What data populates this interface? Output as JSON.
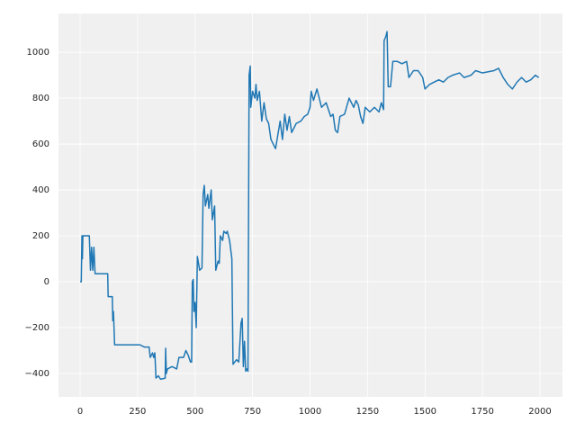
{
  "chart_data": {
    "type": "line",
    "x": [
      0,
      5,
      8,
      10,
      12,
      40,
      45,
      50,
      55,
      60,
      65,
      120,
      122,
      140,
      142,
      145,
      150,
      260,
      280,
      300,
      305,
      315,
      320,
      325,
      330,
      340,
      350,
      370,
      372,
      375,
      380,
      400,
      420,
      430,
      450,
      460,
      470,
      480,
      485,
      488,
      492,
      495,
      500,
      505,
      510,
      520,
      530,
      535,
      540,
      545,
      555,
      560,
      570,
      575,
      585,
      590,
      600,
      605,
      610,
      620,
      625,
      635,
      640,
      650,
      660,
      665,
      680,
      690,
      700,
      705,
      710,
      715,
      720,
      725,
      730,
      735,
      740,
      742,
      750,
      760,
      765,
      770,
      780,
      790,
      800,
      810,
      820,
      830,
      840,
      850,
      860,
      870,
      880,
      890,
      900,
      910,
      920,
      940,
      960,
      975,
      990,
      1000,
      1005,
      1015,
      1030,
      1050,
      1070,
      1090,
      1100,
      1110,
      1120,
      1130,
      1150,
      1170,
      1190,
      1200,
      1210,
      1220,
      1230,
      1240,
      1260,
      1280,
      1300,
      1310,
      1320,
      1322,
      1330,
      1335,
      1340,
      1350,
      1360,
      1380,
      1400,
      1420,
      1430,
      1450,
      1470,
      1490,
      1500,
      1520,
      1540,
      1560,
      1580,
      1600,
      1620,
      1650,
      1670,
      1700,
      1720,
      1750,
      1800,
      1820,
      1840,
      1860,
      1880,
      1900,
      1920,
      1940,
      1960,
      1980,
      1995
    ],
    "series": [
      {
        "color": "#1f77b4",
        "values": [
          0,
          0,
          200,
          100,
          200,
          200,
          50,
          150,
          50,
          150,
          35,
          35,
          -65,
          -65,
          -170,
          -130,
          -275,
          -275,
          -285,
          -285,
          -330,
          -310,
          -330,
          -310,
          -420,
          -410,
          -425,
          -420,
          -290,
          -400,
          -380,
          -370,
          -380,
          -330,
          -330,
          -300,
          -320,
          -350,
          -350,
          0,
          10,
          -130,
          -90,
          -200,
          110,
          50,
          60,
          380,
          420,
          330,
          380,
          320,
          400,
          270,
          330,
          50,
          90,
          80,
          200,
          180,
          220,
          210,
          220,
          180,
          100,
          -360,
          -340,
          -350,
          -180,
          -160,
          -370,
          -260,
          -390,
          -380,
          -390,
          900,
          940,
          760,
          830,
          800,
          860,
          790,
          830,
          700,
          780,
          710,
          690,
          620,
          600,
          580,
          640,
          700,
          620,
          730,
          660,
          720,
          650,
          690,
          700,
          720,
          730,
          760,
          830,
          790,
          840,
          760,
          780,
          720,
          730,
          660,
          650,
          720,
          730,
          800,
          760,
          790,
          770,
          720,
          690,
          760,
          740,
          760,
          740,
          780,
          750,
          1050,
          1070,
          1090,
          850,
          850,
          960,
          960,
          950,
          960,
          890,
          920,
          920,
          890,
          840,
          860,
          870,
          880,
          870,
          890,
          900,
          910,
          890,
          900,
          920,
          910,
          920,
          930,
          890,
          860,
          840,
          870,
          890,
          870,
          880,
          900,
          890
        ]
      }
    ],
    "xlim": [
      -94,
      2098
    ],
    "ylim": [
      -502,
      1169
    ],
    "xticks": [
      0,
      250,
      500,
      750,
      1000,
      1250,
      1500,
      1750,
      2000
    ],
    "yticks": [
      {
        "value": -400,
        "label": "−400"
      },
      {
        "value": -200,
        "label": "−200"
      },
      0,
      200,
      400,
      600,
      800,
      1000
    ],
    "grid": true
  }
}
